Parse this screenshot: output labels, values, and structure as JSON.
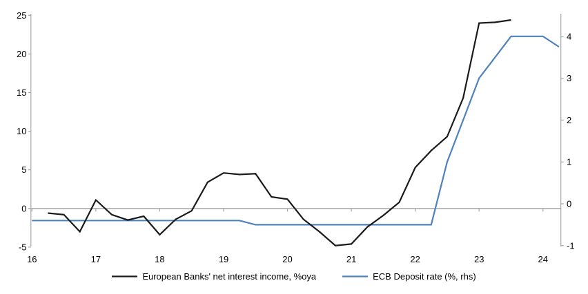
{
  "page": {
    "background": "#ffffff"
  },
  "chart_data": {
    "type": "line",
    "title": "",
    "x_axis": {
      "tick_labels": [
        "16",
        "17",
        "18",
        "19",
        "20",
        "21",
        "22",
        "23",
        "24"
      ],
      "tick_values": [
        16,
        17,
        18,
        19,
        20,
        21,
        22,
        23,
        24
      ],
      "range": [
        16,
        24.3
      ],
      "label_position": "low"
    },
    "left_axis": {
      "tick_labels": [
        "25",
        "20",
        "15",
        "10",
        "5",
        "0",
        "-5"
      ],
      "tick_values": [
        25,
        20,
        15,
        10,
        5,
        0,
        -5
      ],
      "range": [
        -5,
        25
      ],
      "zero_line": true
    },
    "right_axis": {
      "tick_labels": [
        "4",
        "3",
        "2",
        "1",
        "0",
        "-1"
      ],
      "tick_values": [
        4,
        3,
        2,
        1,
        0,
        -1
      ],
      "range_approx": [
        -1.07,
        4.55
      ]
    },
    "grid": "zero-line-only",
    "legend_position": "bottom-center",
    "colors": {
      "axis": "#a6a6a6",
      "text": "#000000",
      "background": "#ffffff"
    },
    "series": [
      {
        "name": "European Banks' net interest income, %oya",
        "color": "#1a1a1a",
        "axis": "left",
        "points": [
          [
            16.25,
            -0.6
          ],
          [
            16.5,
            -0.8
          ],
          [
            16.75,
            -3.0
          ],
          [
            17.0,
            1.1
          ],
          [
            17.25,
            -0.8
          ],
          [
            17.5,
            -1.5
          ],
          [
            17.75,
            -1.0
          ],
          [
            18.0,
            -3.4
          ],
          [
            18.25,
            -1.4
          ],
          [
            18.5,
            -0.3
          ],
          [
            18.75,
            3.4
          ],
          [
            19.0,
            4.6
          ],
          [
            19.25,
            4.4
          ],
          [
            19.5,
            4.5
          ],
          [
            19.75,
            1.5
          ],
          [
            20.0,
            1.2
          ],
          [
            20.25,
            -1.4
          ],
          [
            20.5,
            -3.0
          ],
          [
            20.75,
            -4.8
          ],
          [
            21.0,
            -4.6
          ],
          [
            21.25,
            -2.4
          ],
          [
            21.5,
            -0.9
          ],
          [
            21.75,
            0.8
          ],
          [
            22.0,
            5.3
          ],
          [
            22.25,
            7.5
          ],
          [
            22.5,
            9.3
          ],
          [
            22.75,
            14.3
          ],
          [
            23.0,
            24.0
          ],
          [
            23.25,
            24.1
          ],
          [
            23.5,
            24.4
          ]
        ]
      },
      {
        "name": "ECB Deposit rate (%, rhs)",
        "color": "#4f81bd",
        "axis": "right",
        "points": [
          [
            16.0,
            -0.4
          ],
          [
            16.25,
            -0.4
          ],
          [
            16.5,
            -0.4
          ],
          [
            16.75,
            -0.4
          ],
          [
            17.0,
            -0.4
          ],
          [
            17.25,
            -0.4
          ],
          [
            17.5,
            -0.4
          ],
          [
            17.75,
            -0.4
          ],
          [
            18.0,
            -0.4
          ],
          [
            18.25,
            -0.4
          ],
          [
            18.5,
            -0.4
          ],
          [
            18.75,
            -0.4
          ],
          [
            19.0,
            -0.4
          ],
          [
            19.25,
            -0.4
          ],
          [
            19.5,
            -0.5
          ],
          [
            19.75,
            -0.5
          ],
          [
            20.0,
            -0.5
          ],
          [
            20.25,
            -0.5
          ],
          [
            20.5,
            -0.5
          ],
          [
            20.75,
            -0.5
          ],
          [
            21.0,
            -0.5
          ],
          [
            21.25,
            -0.5
          ],
          [
            21.5,
            -0.5
          ],
          [
            21.75,
            -0.5
          ],
          [
            22.0,
            -0.5
          ],
          [
            22.25,
            -0.5
          ],
          [
            22.5,
            1.0
          ],
          [
            22.75,
            2.0
          ],
          [
            23.0,
            3.0
          ],
          [
            23.25,
            3.5
          ],
          [
            23.5,
            4.0
          ],
          [
            23.75,
            4.0
          ],
          [
            24.0,
            4.0
          ],
          [
            24.25,
            3.75
          ]
        ]
      }
    ]
  }
}
